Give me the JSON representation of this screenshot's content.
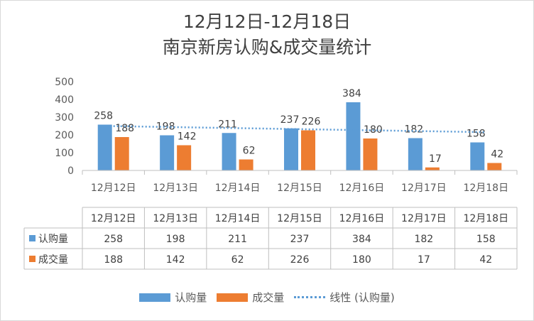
{
  "chart_data": {
    "type": "bar",
    "title": "12月12日-12月18日",
    "subtitle": "南京新房认购&成交量统计",
    "categories": [
      "12月12日",
      "12月13日",
      "12月14日",
      "12月15日",
      "12月16日",
      "12月17日",
      "12月18日"
    ],
    "series": [
      {
        "name": "认购量",
        "values": [
          258,
          198,
          211,
          237,
          384,
          182,
          158
        ],
        "color": "#5b9bd5"
      },
      {
        "name": "成交量",
        "values": [
          188,
          142,
          62,
          226,
          180,
          17,
          42
        ],
        "color": "#ed7d31"
      }
    ],
    "trendline": {
      "name": "线性 (认购量)",
      "series": "认购量",
      "style": "dotted",
      "color": "#5b9bd5"
    },
    "ylim": [
      0,
      500
    ],
    "yticks": [
      0,
      100,
      200,
      300,
      400,
      500
    ],
    "grid": false,
    "data_table": true,
    "legend": "bottom"
  }
}
